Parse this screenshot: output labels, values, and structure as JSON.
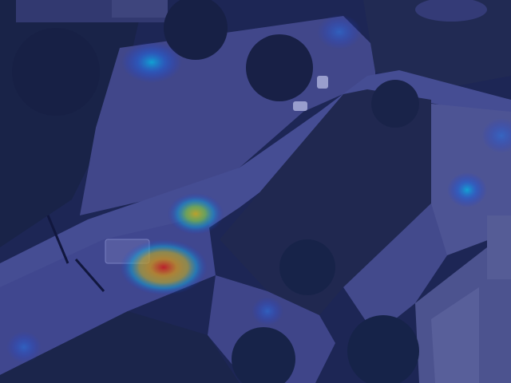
{
  "scene": {
    "type": "aerial crowd density heatmap overlay",
    "colormap": "jet",
    "overlay_tint": "#1f2a8c",
    "palette": {
      "grass": "#1e2a3a",
      "road": "#4a4f8a",
      "plaza": "#5a5f96",
      "trees": "#142030",
      "building": "#5c6290",
      "heat_high": "#ff1a00",
      "heat_mid": "#ffd400",
      "heat_low": "#00e5ff"
    }
  }
}
